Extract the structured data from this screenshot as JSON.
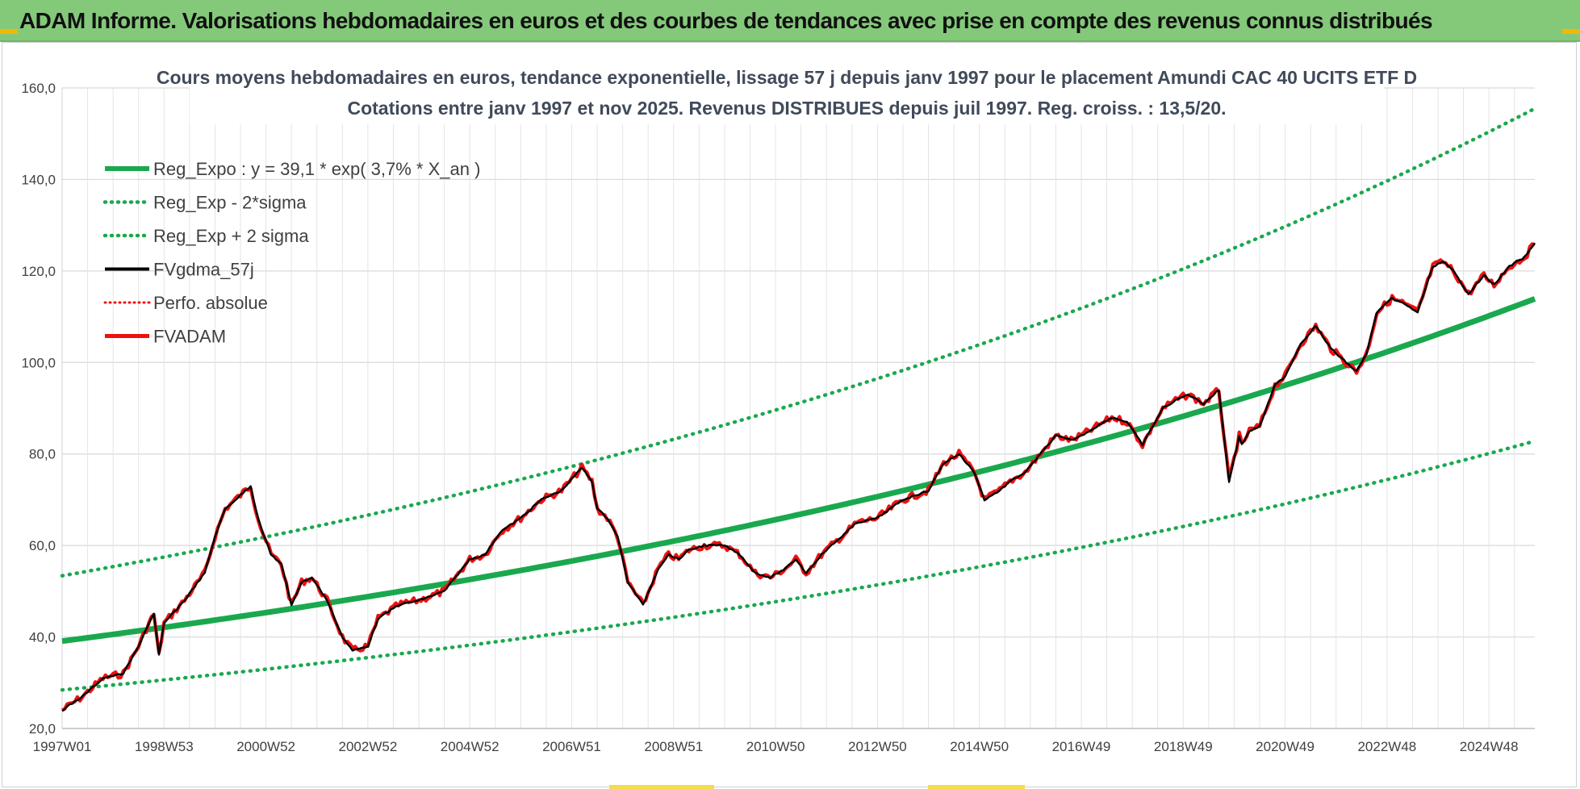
{
  "header": {
    "title": "ADAM Informe. Valorisations hebdomadaires en euros et des courbes de tendances avec prise en compte des revenus connus distribués"
  },
  "colors": {
    "banner": "#84c97a",
    "reg_green": "#1aa84f",
    "fv_black": "#000000",
    "fv_red": "#ee1111",
    "grid": "#d9d9d9"
  },
  "chart_data": {
    "type": "line",
    "title": [
      "Cours moyens hebdomadaires en euros, tendance exponentielle, lissage 57 j depuis janv 1997  pour le placement Amundi CAC 40 UCITS ETF D",
      "Cotations entre janv 1997 et nov 2025. Revenus DISTRIBUES depuis juil 1997. Reg.  croiss. : 13,5/20."
    ],
    "xlabel": "",
    "ylabel": "",
    "ylim": [
      20,
      160
    ],
    "xlim": [
      1997.0,
      2025.9
    ],
    "y_ticks": [
      "20,0",
      "40,0",
      "60,0",
      "80,0",
      "100,0",
      "120,0",
      "140,0",
      "160,0"
    ],
    "x_ticks": [
      {
        "label": "1997W01",
        "year": 1997.0
      },
      {
        "label": "1998W53",
        "year": 1999.0
      },
      {
        "label": "2000W52",
        "year": 2001.0
      },
      {
        "label": "2002W52",
        "year": 2003.0
      },
      {
        "label": "2004W52",
        "year": 2005.0
      },
      {
        "label": "2006W51",
        "year": 2007.0
      },
      {
        "label": "2008W51",
        "year": 2009.0
      },
      {
        "label": "2010W50",
        "year": 2011.0
      },
      {
        "label": "2012W50",
        "year": 2013.0
      },
      {
        "label": "2014W50",
        "year": 2015.0
      },
      {
        "label": "2016W49",
        "year": 2017.0
      },
      {
        "label": "2018W49",
        "year": 2019.0
      },
      {
        "label": "2020W49",
        "year": 2021.0
      },
      {
        "label": "2022W48",
        "year": 2023.0
      },
      {
        "label": "2024W48",
        "year": 2025.0
      }
    ],
    "legend": {
      "placement": "top-left",
      "entries": [
        {
          "key": "reg",
          "label": "Reg_Expo : y = 39,1 * exp( 3,7% *  X_an )"
        },
        {
          "key": "lower",
          "label": "Reg_Exp - 2*sigma"
        },
        {
          "key": "upper",
          "label": "Reg_Exp + 2 sigma"
        },
        {
          "key": "gdma",
          "label": "FVgdma_57j"
        },
        {
          "key": "perfo",
          "label": "Perfo. absolue"
        },
        {
          "key": "fvadam",
          "label": "FVADAM"
        }
      ]
    },
    "regression": {
      "a": 39.1,
      "rate": 0.037,
      "lower_factor": 0.727,
      "upper_factor": 1.365
    },
    "series": [
      {
        "name": "FVADAM",
        "x": [
          1997.0,
          1997.4,
          1997.8,
          1998.2,
          1998.5,
          1998.7,
          1998.8,
          1998.9,
          1999.0,
          1999.4,
          1999.8,
          2000.0,
          2000.2,
          2000.4,
          2000.7,
          2000.8,
          2000.9,
          2001.1,
          2001.3,
          2001.5,
          2001.7,
          2001.9,
          2002.2,
          2002.5,
          2002.7,
          2003.0,
          2003.2,
          2003.6,
          2004.0,
          2004.5,
          2005.0,
          2005.3,
          2005.6,
          2006.0,
          2006.4,
          2006.8,
          2007.2,
          2007.4,
          2007.5,
          2007.7,
          2007.9,
          2008.1,
          2008.4,
          2008.7,
          2008.9,
          2009.1,
          2009.3,
          2009.6,
          2010.0,
          2010.3,
          2010.6,
          2010.9,
          2011.2,
          2011.4,
          2011.6,
          2011.9,
          2012.3,
          2012.6,
          2013.0,
          2013.5,
          2014.0,
          2014.3,
          2014.6,
          2014.9,
          2015.1,
          2015.4,
          2015.6,
          2015.9,
          2016.2,
          2016.5,
          2016.8,
          2017.0,
          2017.3,
          2017.6,
          2017.9,
          2018.2,
          2018.6,
          2018.9,
          2019.1,
          2019.4,
          2019.7,
          2019.9,
          2020.1,
          2020.15,
          2020.3,
          2020.5,
          2020.8,
          2021.0,
          2021.3,
          2021.6,
          2021.9,
          2022.2,
          2022.4,
          2022.6,
          2022.8,
          2023.1,
          2023.3,
          2023.6,
          2023.9,
          2024.1,
          2024.3,
          2024.6,
          2024.9,
          2025.1,
          2025.4,
          2025.7,
          2025.9
        ],
        "y": [
          24,
          27,
          31,
          32,
          38,
          43,
          45,
          36,
          43,
          48,
          54,
          62,
          68,
          70,
          73,
          68,
          64,
          58,
          56,
          47,
          52,
          53,
          48,
          40,
          37,
          38,
          44,
          47,
          48,
          50,
          57,
          58,
          63,
          66,
          70,
          72,
          77,
          74,
          68,
          66,
          62,
          52,
          47,
          55,
          58,
          57,
          59,
          60,
          60,
          58,
          54,
          53,
          55,
          57,
          54,
          58,
          62,
          65,
          66,
          70,
          72,
          78,
          80,
          76,
          70,
          72,
          74,
          76,
          80,
          84,
          83,
          84,
          86,
          88,
          87,
          82,
          90,
          92,
          93,
          91,
          94,
          74,
          84,
          82,
          85,
          86,
          95,
          97,
          104,
          108,
          103,
          100,
          98,
          102,
          111,
          114,
          113,
          111,
          121,
          122,
          120,
          115,
          119,
          117,
          121,
          123,
          126
        ]
      }
    ]
  }
}
